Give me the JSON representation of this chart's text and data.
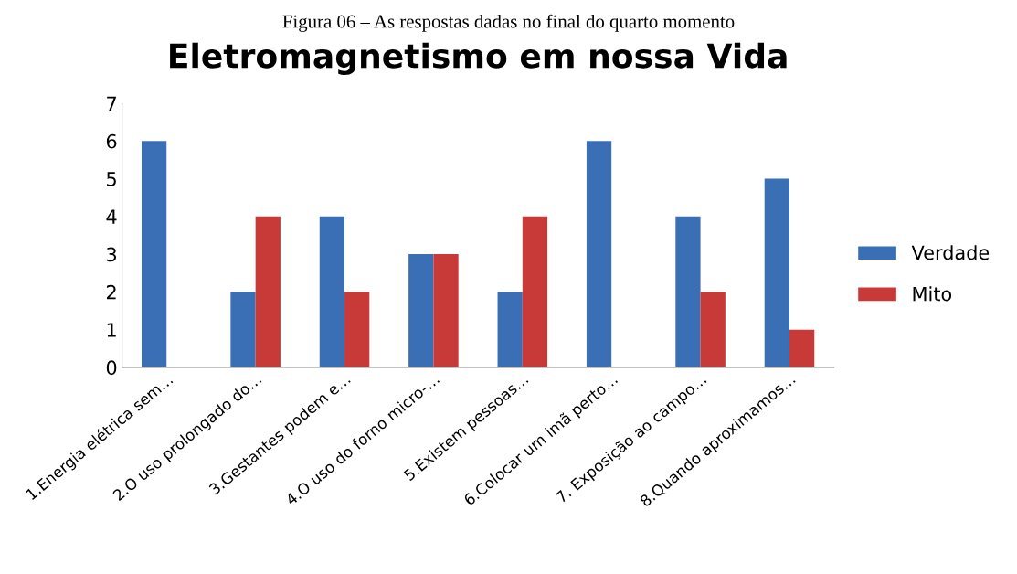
{
  "chart_data": {
    "type": "bar",
    "title": "Eletromagnetismo em nossa Vida",
    "annotations": [
      "Figura 06 – As respostas dadas no final do quarto momento"
    ],
    "categories": [
      "1.Energia elétrica sem…",
      "2.O uso prolongado do…",
      "3.Gestantes podem e…",
      "4.O uso do forno micro-…",
      "5.Existem pessoas…",
      "6.Colocar um imã perto…",
      "7. Exposição ao campo…",
      "8.Quando aproximamos…"
    ],
    "series": [
      {
        "name": "Verdade",
        "color": "#3a6fb5",
        "values": [
          6,
          2,
          4,
          3,
          2,
          6,
          4,
          5
        ]
      },
      {
        "name": "Mito",
        "color": "#c83a38",
        "values": [
          null,
          4,
          2,
          3,
          4,
          null,
          2,
          1
        ]
      }
    ],
    "ylim": [
      0,
      7
    ],
    "yticks": [
      0,
      1,
      2,
      3,
      4,
      5,
      6,
      7
    ],
    "grid": false,
    "legend": "right"
  }
}
